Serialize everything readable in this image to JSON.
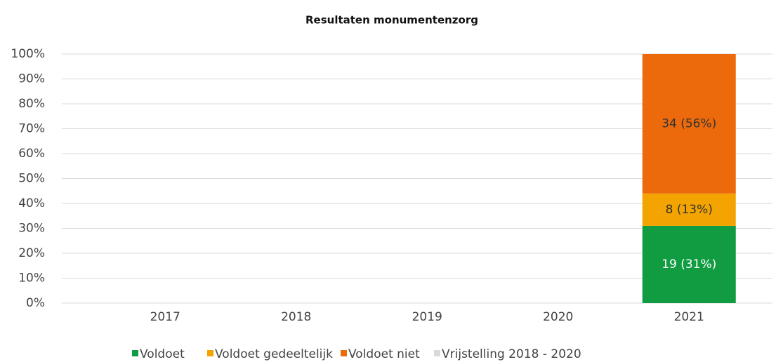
{
  "chart_data": {
    "type": "stacked-bar",
    "title": "Resultaten monumentenzorg",
    "categories": [
      "2017",
      "2018",
      "2019",
      "2020",
      "2021"
    ],
    "series": [
      {
        "name": "Voldoet",
        "color": "#119c41",
        "values": [
          null,
          null,
          null,
          null,
          31
        ],
        "value_labels": [
          null,
          null,
          null,
          null,
          "19 (31%)"
        ],
        "label_color": "#ffffff"
      },
      {
        "name": "Voldoet gedeeltelijk",
        "color": "#f3a400",
        "values": [
          null,
          null,
          null,
          null,
          13
        ],
        "value_labels": [
          null,
          null,
          null,
          null,
          "8 (13%)"
        ],
        "label_color": "#333333"
      },
      {
        "name": "Voldoet niet",
        "color": "#ec6a0b",
        "values": [
          null,
          null,
          null,
          null,
          56
        ],
        "value_labels": [
          null,
          null,
          null,
          null,
          "34 (56%)"
        ],
        "label_color": "#333333"
      },
      {
        "name": "Vrijstelling 2018 - 2020",
        "color": "#d9d9d9",
        "values": [
          null,
          null,
          null,
          null,
          null
        ]
      }
    ],
    "ylim": [
      0,
      100
    ],
    "yticks": [
      {
        "value": 0,
        "label": "0%"
      },
      {
        "value": 10,
        "label": "10%"
      },
      {
        "value": 20,
        "label": "20%"
      },
      {
        "value": 30,
        "label": "30%"
      },
      {
        "value": 40,
        "label": "40%"
      },
      {
        "value": 50,
        "label": "50%"
      },
      {
        "value": 60,
        "label": "60%"
      },
      {
        "value": 70,
        "label": "70%"
      },
      {
        "value": 80,
        "label": "80%"
      },
      {
        "value": 90,
        "label": "90%"
      },
      {
        "value": 100,
        "label": "100%"
      }
    ],
    "grid": true,
    "legend": "bottom"
  }
}
